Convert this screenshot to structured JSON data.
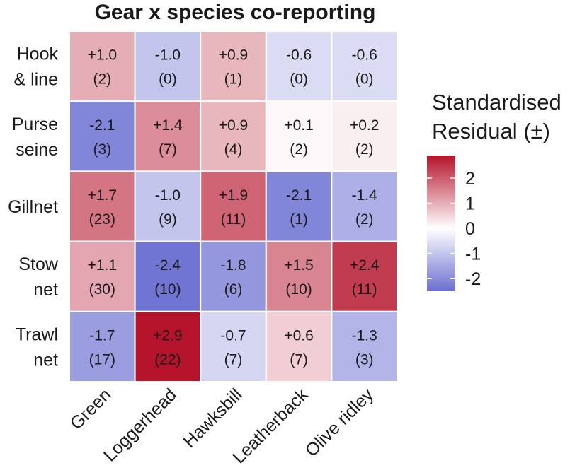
{
  "chart_data": {
    "type": "heatmap",
    "title": "Gear x species co-reporting",
    "rows": [
      [
        "Hook",
        "& line"
      ],
      [
        "Purse",
        "seine"
      ],
      [
        "Gillnet"
      ],
      [
        "Stow",
        "net"
      ],
      [
        "Trawl",
        "net"
      ]
    ],
    "columns": [
      "Green",
      "Loggerhead",
      "Hawksbill",
      "Leatherback",
      "Olive ridley"
    ],
    "residual_labels": [
      [
        "+1.0",
        "-1.0",
        "+0.9",
        "-0.6",
        "-0.6"
      ],
      [
        "-2.1",
        "+1.4",
        "+0.9",
        "+0.1",
        "+0.2"
      ],
      [
        "+1.7",
        "-1.0",
        "+1.9",
        "-2.1",
        "-1.4"
      ],
      [
        "+1.1",
        "-2.4",
        "-1.8",
        "+1.5",
        "+2.4"
      ],
      [
        "-1.7",
        "+2.9",
        "-0.7",
        "+0.6",
        "-1.3"
      ]
    ],
    "count_labels": [
      [
        "(2)",
        "(0)",
        "(1)",
        "(0)",
        "(0)"
      ],
      [
        "(3)",
        "(7)",
        "(4)",
        "(2)",
        "(2)"
      ],
      [
        "(23)",
        "(9)",
        "(11)",
        "(1)",
        "(2)"
      ],
      [
        "(30)",
        "(10)",
        "(6)",
        "(10)",
        "(11)"
      ],
      [
        "(17)",
        "(22)",
        "(7)",
        "(7)",
        "(3)"
      ]
    ],
    "legend": {
      "title": [
        "Standardised",
        "Residual (±)"
      ],
      "tick_values": [
        2,
        1,
        0,
        -1,
        -2
      ],
      "tick_labels": [
        "2",
        "1",
        "0",
        "-1",
        "-2"
      ],
      "range": [
        -2.5,
        2.9
      ],
      "placement": "right"
    },
    "colors": {
      "low": "#6a6fd1",
      "mid": "#ffffff",
      "high": "#b5132b"
    }
  }
}
